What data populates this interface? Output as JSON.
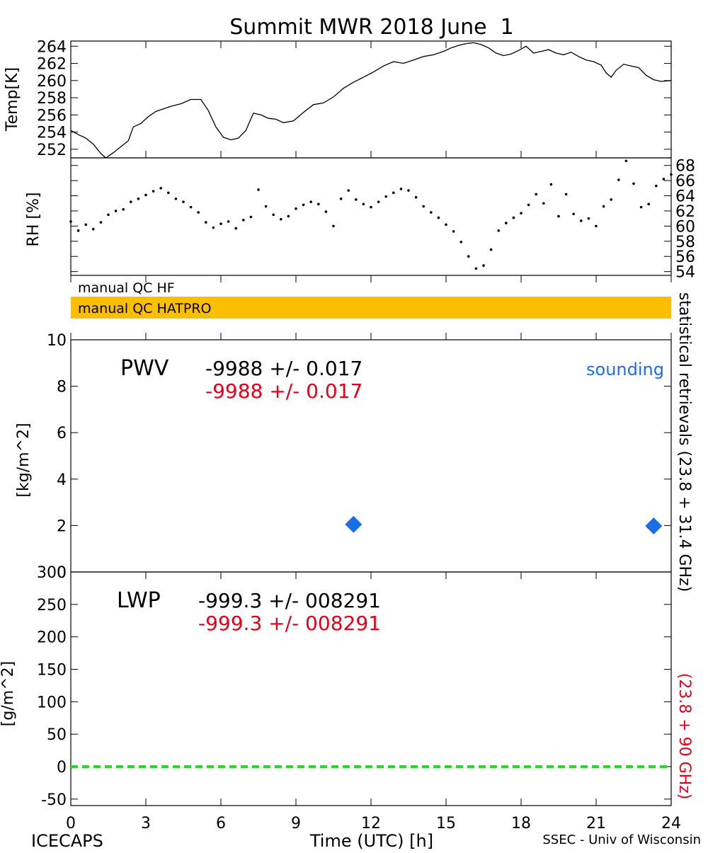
{
  "page": {
    "title": "Summit MWR 2018 June  1",
    "footer_left": "ICECAPS",
    "footer_right": "SSEC - Univ of Wisconsin",
    "right_label_black": "statistical retrievals (23.8 + 31.4 GHz)",
    "right_label_red": "(23.8 + 90 GHz)"
  },
  "colors": {
    "black": "#000000",
    "red": "#e8001a",
    "blue": "#1a6ee8",
    "qc_orange": "#fbbf00",
    "lwp_zero_line": "#22dd22"
  },
  "qc": {
    "hf_label": "manual QC HF",
    "hatpro_label": "manual QC HATPRO"
  },
  "chart_data": [
    {
      "type": "line",
      "name": "temperature",
      "ylabel": "Temp[K]",
      "xlim": [
        0,
        24
      ],
      "ylim": [
        251,
        264.6
      ],
      "yticks": [
        252,
        254,
        256,
        258,
        260,
        262,
        264
      ],
      "x": [
        0,
        0.3,
        0.6,
        0.9,
        1.2,
        1.4,
        1.7,
        2.0,
        2.3,
        2.5,
        2.8,
        3.1,
        3.4,
        3.7,
        4.0,
        4.4,
        4.8,
        5.2,
        5.5,
        5.8,
        6.1,
        6.4,
        6.7,
        7.0,
        7.3,
        7.6,
        7.9,
        8.2,
        8.5,
        8.9,
        9.3,
        9.7,
        10.1,
        10.5,
        10.9,
        11.3,
        11.7,
        12.1,
        12.5,
        12.9,
        13.3,
        13.7,
        14.1,
        14.5,
        14.9,
        15.2,
        15.5,
        15.8,
        16.1,
        16.4,
        16.7,
        17.0,
        17.3,
        17.6,
        17.9,
        18.2,
        18.5,
        18.8,
        19.1,
        19.4,
        19.7,
        20.0,
        20.3,
        20.6,
        20.9,
        21.2,
        21.4,
        21.6,
        21.8,
        22.1,
        22.4,
        22.7,
        23.0,
        23.3,
        23.6,
        24.0
      ],
      "y": [
        254.2,
        253.7,
        253.3,
        252.6,
        251.5,
        251.0,
        251.6,
        252.3,
        253.0,
        254.6,
        255.0,
        255.8,
        256.4,
        256.7,
        257.0,
        257.3,
        257.8,
        257.8,
        256.5,
        254.6,
        253.4,
        253.1,
        253.3,
        254.2,
        256.2,
        256.0,
        255.6,
        255.5,
        255.1,
        255.3,
        256.3,
        257.2,
        257.4,
        258.1,
        259.1,
        259.8,
        260.4,
        261.0,
        261.7,
        262.2,
        262.0,
        262.4,
        262.8,
        263.0,
        263.4,
        263.8,
        264.1,
        264.3,
        264.4,
        264.2,
        263.8,
        263.2,
        262.9,
        263.1,
        263.5,
        264.0,
        263.2,
        263.4,
        263.6,
        263.2,
        263.0,
        263.3,
        262.8,
        262.4,
        262.2,
        261.8,
        260.9,
        260.4,
        261.2,
        261.9,
        261.7,
        261.5,
        260.6,
        260.1,
        259.9,
        260.0
      ]
    },
    {
      "type": "scatter",
      "name": "relative-humidity",
      "ylabel": "RH [%]",
      "xlim": [
        0,
        24
      ],
      "ylim": [
        53.5,
        69
      ],
      "yticks": [
        54,
        56,
        58,
        60,
        62,
        64,
        66,
        68
      ],
      "x": [
        0,
        0.3,
        0.6,
        0.9,
        1.2,
        1.5,
        1.8,
        2.1,
        2.4,
        2.7,
        3.0,
        3.3,
        3.6,
        3.9,
        4.2,
        4.5,
        4.8,
        5.1,
        5.4,
        5.7,
        6.0,
        6.3,
        6.6,
        6.9,
        7.2,
        7.5,
        7.8,
        8.1,
        8.4,
        8.7,
        9.0,
        9.3,
        9.6,
        9.9,
        10.2,
        10.5,
        10.8,
        11.1,
        11.4,
        11.7,
        12.0,
        12.3,
        12.6,
        12.9,
        13.2,
        13.5,
        13.8,
        14.1,
        14.4,
        14.7,
        15.0,
        15.3,
        15.6,
        15.9,
        16.2,
        16.5,
        16.8,
        17.1,
        17.4,
        17.7,
        18.0,
        18.3,
        18.6,
        18.9,
        19.2,
        19.5,
        19.8,
        20.1,
        20.4,
        20.7,
        21.0,
        21.3,
        21.6,
        21.9,
        22.2,
        22.5,
        22.8,
        23.1,
        23.4,
        23.7,
        24.0
      ],
      "y": [
        60.6,
        59.4,
        60.2,
        59.6,
        60.5,
        61.5,
        62.0,
        62.2,
        63.2,
        63.6,
        64.1,
        64.6,
        65.0,
        64.4,
        63.6,
        63.2,
        62.5,
        61.8,
        60.5,
        59.8,
        60.3,
        60.6,
        59.7,
        60.8,
        61.2,
        64.8,
        62.6,
        61.5,
        60.9,
        61.3,
        62.3,
        62.8,
        63.2,
        62.9,
        61.9,
        60.0,
        63.6,
        64.7,
        63.5,
        62.9,
        62.5,
        63.2,
        63.9,
        64.4,
        64.9,
        64.7,
        63.8,
        62.6,
        61.8,
        61.1,
        60.2,
        59.3,
        57.9,
        56.0,
        54.4,
        54.8,
        56.9,
        59.4,
        60.4,
        61.1,
        61.7,
        62.8,
        64.2,
        63.0,
        65.5,
        61.3,
        64.2,
        61.6,
        60.7,
        61.0,
        60.0,
        62.6,
        63.5,
        66.1,
        68.6,
        65.6,
        62.5,
        62.9,
        65.3,
        66.2,
        66.8
      ]
    },
    {
      "type": "scatter",
      "name": "pwv",
      "ylabel": "[kg/m^2]",
      "xlim": [
        0,
        24
      ],
      "ylim": [
        0,
        10
      ],
      "yticks": [
        0,
        2,
        4,
        6,
        8,
        10
      ],
      "label": "PWV",
      "stat_black": "-9988 +/- 0.017",
      "stat_red": "-9988 +/- 0.017",
      "legend": "sounding",
      "series": [
        {
          "name": "sounding",
          "x": [
            11.3,
            23.3
          ],
          "y": [
            2.05,
            1.98
          ]
        }
      ]
    },
    {
      "type": "line",
      "name": "lwp",
      "ylabel": "[g/m^2]",
      "xlabel": "Time (UTC) [h]",
      "xlim": [
        0,
        24
      ],
      "ylim": [
        -60,
        300
      ],
      "yticks": [
        -50,
        0,
        50,
        100,
        150,
        200,
        250,
        300
      ],
      "xticks": [
        0,
        3,
        6,
        9,
        12,
        15,
        18,
        21,
        24
      ],
      "label": "LWP",
      "stat_black": "-999.3 +/- 008291",
      "stat_red": "-999.3 +/- 008291",
      "zero_line": 0
    }
  ]
}
